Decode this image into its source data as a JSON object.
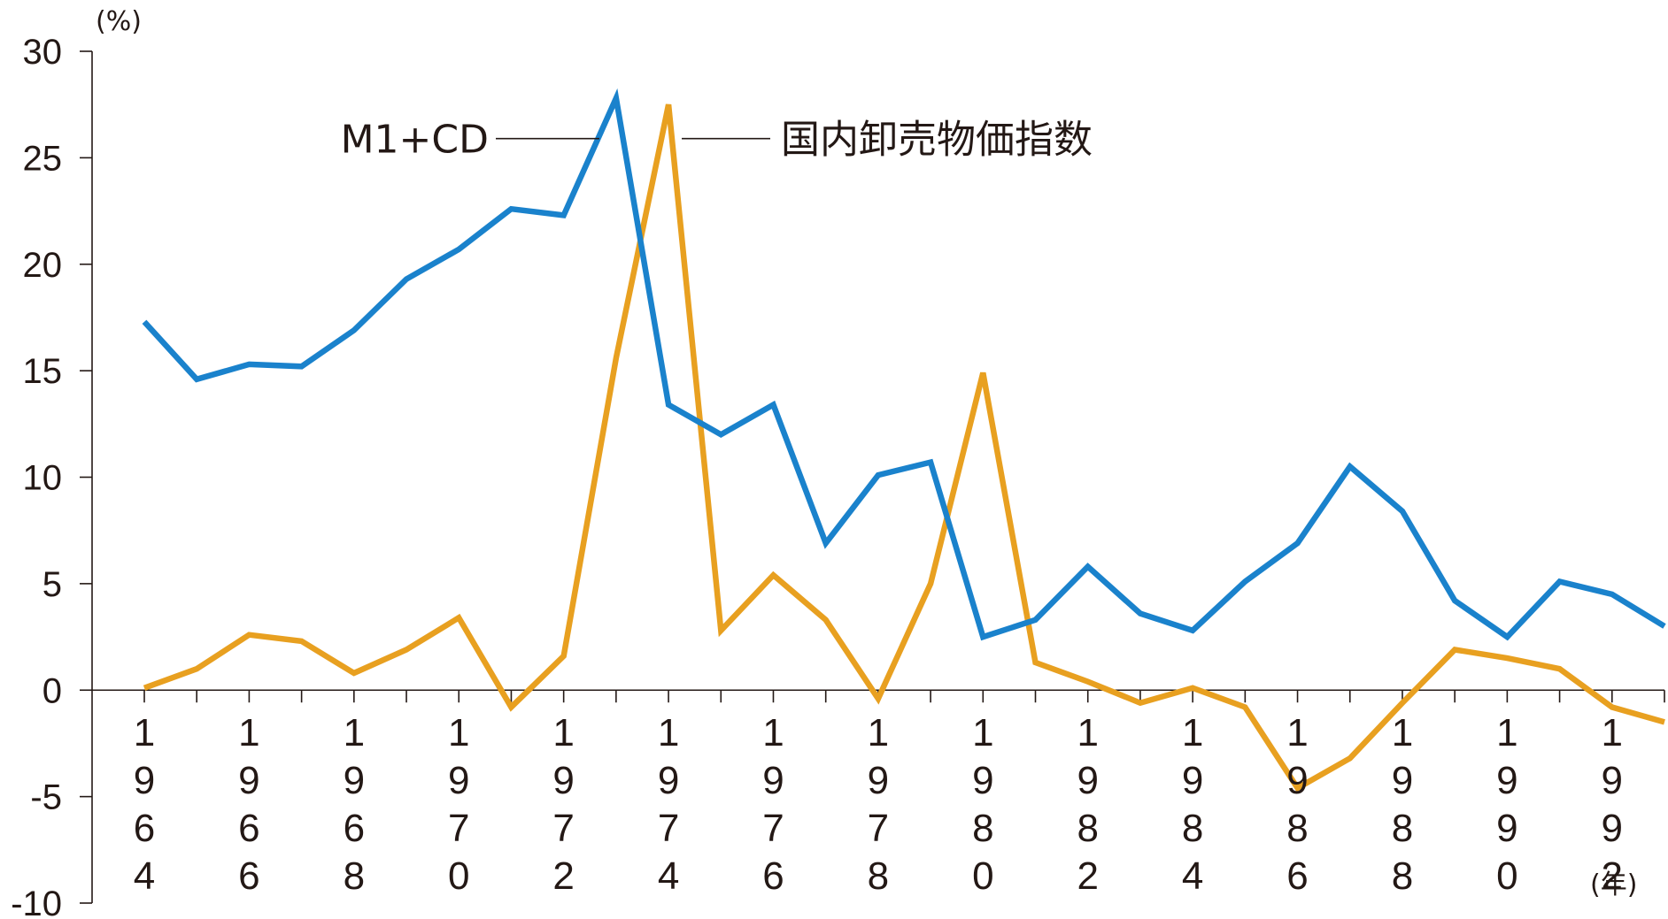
{
  "chart_data": {
    "type": "line",
    "title": "",
    "xlabel": "",
    "ylabel": "",
    "y_unit": "(%)",
    "x_unit": "(年)",
    "ylim": [
      -10,
      30
    ],
    "y_ticks": [
      "30",
      "25",
      "20",
      "15",
      "10",
      "5",
      "0",
      "-5",
      "-10"
    ],
    "x": [
      1964,
      1965,
      1966,
      1967,
      1968,
      1969,
      1970,
      1971,
      1972,
      1973,
      1974,
      1975,
      1976,
      1977,
      1978,
      1979,
      1980,
      1981,
      1982,
      1983,
      1984,
      1985,
      1986,
      1987,
      1988,
      1989,
      1990,
      1991,
      1992,
      1993
    ],
    "x_tick_labels": [
      "1964",
      "1966",
      "1968",
      "1970",
      "1972",
      "1974",
      "1976",
      "1978",
      "1980",
      "1982",
      "1984",
      "1986",
      "1988",
      "1990",
      "1992"
    ],
    "series": [
      {
        "name": "M1+CD",
        "color": "#1a82cc",
        "values": [
          17.3,
          14.6,
          15.3,
          15.2,
          16.9,
          19.3,
          20.7,
          22.6,
          22.3,
          27.8,
          13.4,
          12.0,
          13.4,
          6.9,
          10.1,
          10.7,
          2.5,
          3.3,
          5.8,
          3.6,
          2.8,
          5.1,
          6.9,
          10.5,
          8.4,
          4.2,
          2.5,
          5.1,
          4.5,
          3.0
        ]
      },
      {
        "name": "国内卸売物価指数",
        "color": "#e8a020",
        "values": [
          0.1,
          1.0,
          2.6,
          2.3,
          0.8,
          1.9,
          3.4,
          -0.8,
          1.6,
          15.6,
          27.5,
          2.8,
          5.4,
          3.3,
          -0.4,
          5.0,
          14.9,
          1.3,
          0.4,
          -0.6,
          0.1,
          -0.8,
          -4.6,
          -3.2,
          -0.6,
          1.9,
          1.5,
          1.0,
          -0.8,
          -1.5
        ]
      }
    ]
  }
}
